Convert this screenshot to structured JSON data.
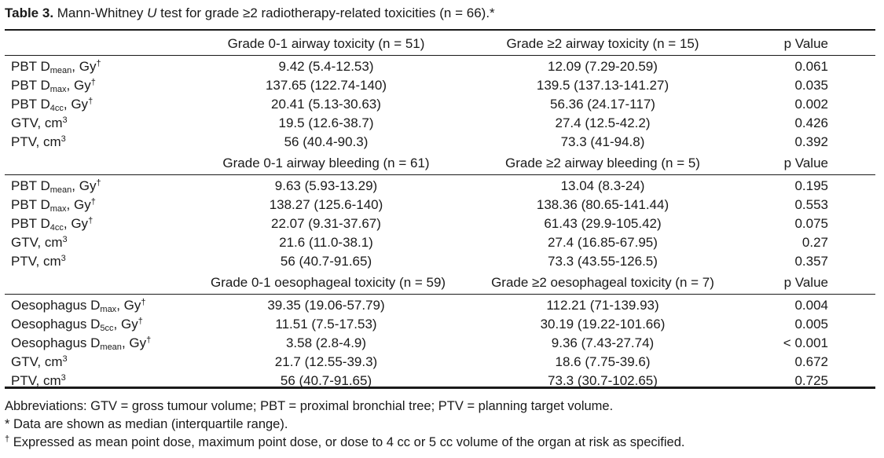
{
  "caption": {
    "label": "Table 3.",
    "text_before": " Mann-Whitney ",
    "italic_u": "U",
    "text_after": " test for grade ≥2 radiotherapy-related toxicities (n = 66).*"
  },
  "sections": [
    {
      "header": {
        "col_a": "Grade 0-1 airway toxicity (n = 51)",
        "col_b": "Grade ≥2 airway toxicity (n = 15)",
        "col_p": "p Value"
      },
      "rows": [
        {
          "label": {
            "pre": "PBT D",
            "sub": "mean",
            "post": ", Gy",
            "sup": "†"
          },
          "a": "9.42 (5.4-12.53)",
          "b": "12.09 (7.29-20.59)",
          "p": "0.061"
        },
        {
          "label": {
            "pre": "PBT D",
            "sub": "max",
            "post": ", Gy",
            "sup": "†"
          },
          "a": "137.65 (122.74-140)",
          "b": "139.5 (137.13-141.27)",
          "p": "0.035"
        },
        {
          "label": {
            "pre": "PBT D",
            "sub": "4cc",
            "post": ", Gy",
            "sup": "†"
          },
          "a": "20.41 (5.13-30.63)",
          "b": "56.36 (24.17-117)",
          "p": "0.002"
        },
        {
          "label": {
            "pre": "GTV, cm",
            "sub": "",
            "post": "",
            "sup": "3"
          },
          "a": "19.5 (12.6-38.7)",
          "b": "27.4 (12.5-42.2)",
          "p": "0.426"
        },
        {
          "label": {
            "pre": "PTV, cm",
            "sub": "",
            "post": "",
            "sup": "3"
          },
          "a": "56 (40.4-90.3)",
          "b": "73.3 (41-94.8)",
          "p": "0.392"
        }
      ]
    },
    {
      "header": {
        "col_a": "Grade 0-1 airway bleeding (n = 61)",
        "col_b": "Grade ≥2 airway bleeding (n = 5)",
        "col_p": "p Value"
      },
      "rows": [
        {
          "label": {
            "pre": "PBT D",
            "sub": "mean",
            "post": ", Gy",
            "sup": "†"
          },
          "a": "9.63 (5.93-13.29)",
          "b": "13.04 (8.3-24)",
          "p": "0.195"
        },
        {
          "label": {
            "pre": "PBT D",
            "sub": "max",
            "post": ", Gy",
            "sup": "†"
          },
          "a": "138.27 (125.6-140)",
          "b": "138.36 (80.65-141.44)",
          "p": "0.553"
        },
        {
          "label": {
            "pre": "PBT D",
            "sub": "4cc",
            "post": ", Gy",
            "sup": "†"
          },
          "a": "22.07 (9.31-37.67)",
          "b": "61.43 (29.9-105.42)",
          "p": "0.075"
        },
        {
          "label": {
            "pre": "GTV, cm",
            "sub": "",
            "post": "",
            "sup": "3"
          },
          "a": "21.6 (11.0-38.1)",
          "b": "27.4 (16.85-67.95)",
          "p": "0.27"
        },
        {
          "label": {
            "pre": "PTV, cm",
            "sub": "",
            "post": "",
            "sup": "3"
          },
          "a": "56 (40.7-91.65)",
          "b": "73.3 (43.55-126.5)",
          "p": "0.357"
        }
      ]
    },
    {
      "header": {
        "col_a": "Grade 0-1 oesophageal toxicity (n = 59)",
        "col_b": "Grade ≥2 oesophageal toxicity (n = 7)",
        "col_p": "p Value"
      },
      "rows": [
        {
          "label": {
            "pre": "Oesophagus D",
            "sub": "max",
            "post": ", Gy",
            "sup": "†"
          },
          "a": "39.35 (19.06-57.79)",
          "b": "112.21 (71-139.93)",
          "p": "0.004"
        },
        {
          "label": {
            "pre": "Oesophagus D",
            "sub": "5cc",
            "post": ", Gy",
            "sup": "†"
          },
          "a": "11.51 (7.5-17.53)",
          "b": "30.19 (19.22-101.66)",
          "p": "0.005"
        },
        {
          "label": {
            "pre": "Oesophagus D",
            "sub": "mean",
            "post": ", Gy",
            "sup": "†"
          },
          "a": "3.58 (2.8-4.9)",
          "b": "9.36 (7.43-27.74)",
          "p": "< 0.001"
        },
        {
          "label": {
            "pre": "GTV, cm",
            "sub": "",
            "post": "",
            "sup": "3"
          },
          "a": "21.7 (12.55-39.3)",
          "b": "18.6 (7.75-39.6)",
          "p": "0.672"
        },
        {
          "label": {
            "pre": "PTV, cm",
            "sub": "",
            "post": "",
            "sup": "3"
          },
          "a": "56 (40.7-91.65)",
          "b": "73.3 (30.7-102.65)",
          "p": "0.725"
        }
      ]
    }
  ],
  "footnotes": {
    "abbreviations": "Abbreviations: GTV = gross tumour volume; PBT = proximal bronchial tree; PTV = planning target volume.",
    "star": "* Data are shown as median (interquartile range).",
    "dagger_mark": "†",
    "dagger_text": " Expressed as mean point dose, maximum point dose, or dose to 4 cc or 5 cc volume of the organ at risk as specified."
  }
}
